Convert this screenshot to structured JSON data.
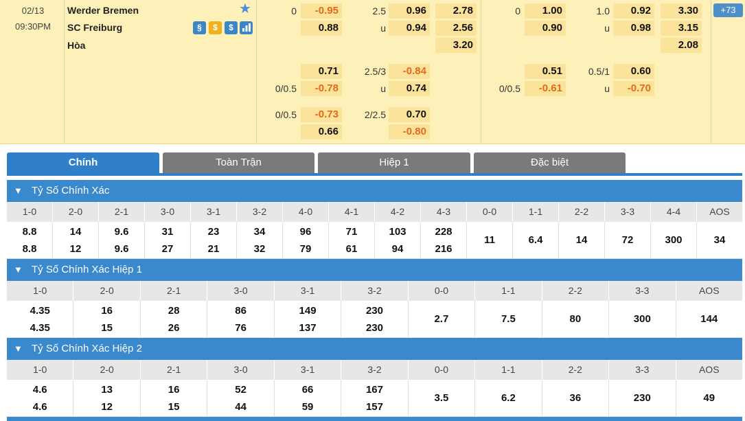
{
  "match": {
    "date": "02/13",
    "time": "09:30PM",
    "home": "Werder Bremen",
    "away": "SC Freiburg",
    "draw": "Hòa",
    "more_count": "73",
    "icons": [
      "scroll-icon",
      "coin-icon",
      "dollar-icon",
      "chart-icon"
    ]
  },
  "odds": {
    "ft": {
      "hcp": [
        "0",
        "-0.95",
        "0.88"
      ],
      "ou": [
        "2.5",
        "0.96",
        "u",
        "0.94"
      ],
      "x12": [
        "2.78",
        "2.56",
        "3.20"
      ],
      "alt1_hcp": [
        "0.71",
        "0/0.5",
        "-0.78"
      ],
      "alt1_ou": [
        "2.5/3",
        "-0.84",
        "u",
        "0.74"
      ],
      "alt2_hcp": [
        "0/0.5",
        "-0.73",
        "0.66"
      ],
      "alt2_ou": [
        "2/2.5",
        "0.70",
        "-0.80"
      ]
    },
    "h1": {
      "hcp": [
        "0",
        "1.00",
        "0.90"
      ],
      "ou": [
        "1.0",
        "0.92",
        "u",
        "0.98"
      ],
      "x12": [
        "3.30",
        "3.15",
        "2.08"
      ],
      "alt1_hcp": [
        "0.51",
        "0/0.5",
        "-0.61"
      ],
      "alt1_ou": [
        "0.5/1",
        "0.60",
        "u",
        "-0.70"
      ]
    }
  },
  "tabs": [
    "Chính",
    "Toàn Trận",
    "Hiệp 1",
    "Đặc biệt"
  ],
  "sections": [
    {
      "title": "Tỷ Số Chính Xác",
      "headers": [
        "1-0",
        "2-0",
        "2-1",
        "3-0",
        "3-1",
        "3-2",
        "4-0",
        "4-1",
        "4-2",
        "4-3",
        "0-0",
        "1-1",
        "2-2",
        "3-3",
        "4-4",
        "AOS"
      ],
      "rows": [
        [
          "8.8",
          "8.8"
        ],
        [
          "14",
          "12"
        ],
        [
          "9.6",
          "9.6"
        ],
        [
          "31",
          "27"
        ],
        [
          "23",
          "21"
        ],
        [
          "34",
          "32"
        ],
        [
          "96",
          "79"
        ],
        [
          "71",
          "61"
        ],
        [
          "103",
          "94"
        ],
        [
          "228",
          "216"
        ],
        [
          "11"
        ],
        [
          "6.4"
        ],
        [
          "14"
        ],
        [
          "72"
        ],
        [
          "300"
        ],
        [
          "34"
        ]
      ]
    },
    {
      "title": "Tỷ Số Chính Xác Hiệp 1",
      "headers": [
        "1-0",
        "2-0",
        "2-1",
        "3-0",
        "3-1",
        "3-2",
        "0-0",
        "1-1",
        "2-2",
        "3-3",
        "AOS"
      ],
      "rows": [
        [
          "4.35",
          "4.35"
        ],
        [
          "16",
          "15"
        ],
        [
          "28",
          "26"
        ],
        [
          "86",
          "76"
        ],
        [
          "149",
          "137"
        ],
        [
          "230",
          "230"
        ],
        [
          "2.7"
        ],
        [
          "7.5"
        ],
        [
          "80"
        ],
        [
          "300"
        ],
        [
          "144"
        ]
      ]
    },
    {
      "title": "Tỷ Số Chính Xác Hiệp 2",
      "headers": [
        "1-0",
        "2-0",
        "2-1",
        "3-0",
        "3-1",
        "3-2",
        "0-0",
        "1-1",
        "2-2",
        "3-3",
        "AOS"
      ],
      "rows": [
        [
          "4.6",
          "4.6"
        ],
        [
          "13",
          "12"
        ],
        [
          "16",
          "15"
        ],
        [
          "52",
          "44"
        ],
        [
          "66",
          "59"
        ],
        [
          "167",
          "157"
        ],
        [
          "3.5"
        ],
        [
          "6.2"
        ],
        [
          "36"
        ],
        [
          "230"
        ],
        [
          "49"
        ]
      ]
    }
  ]
}
